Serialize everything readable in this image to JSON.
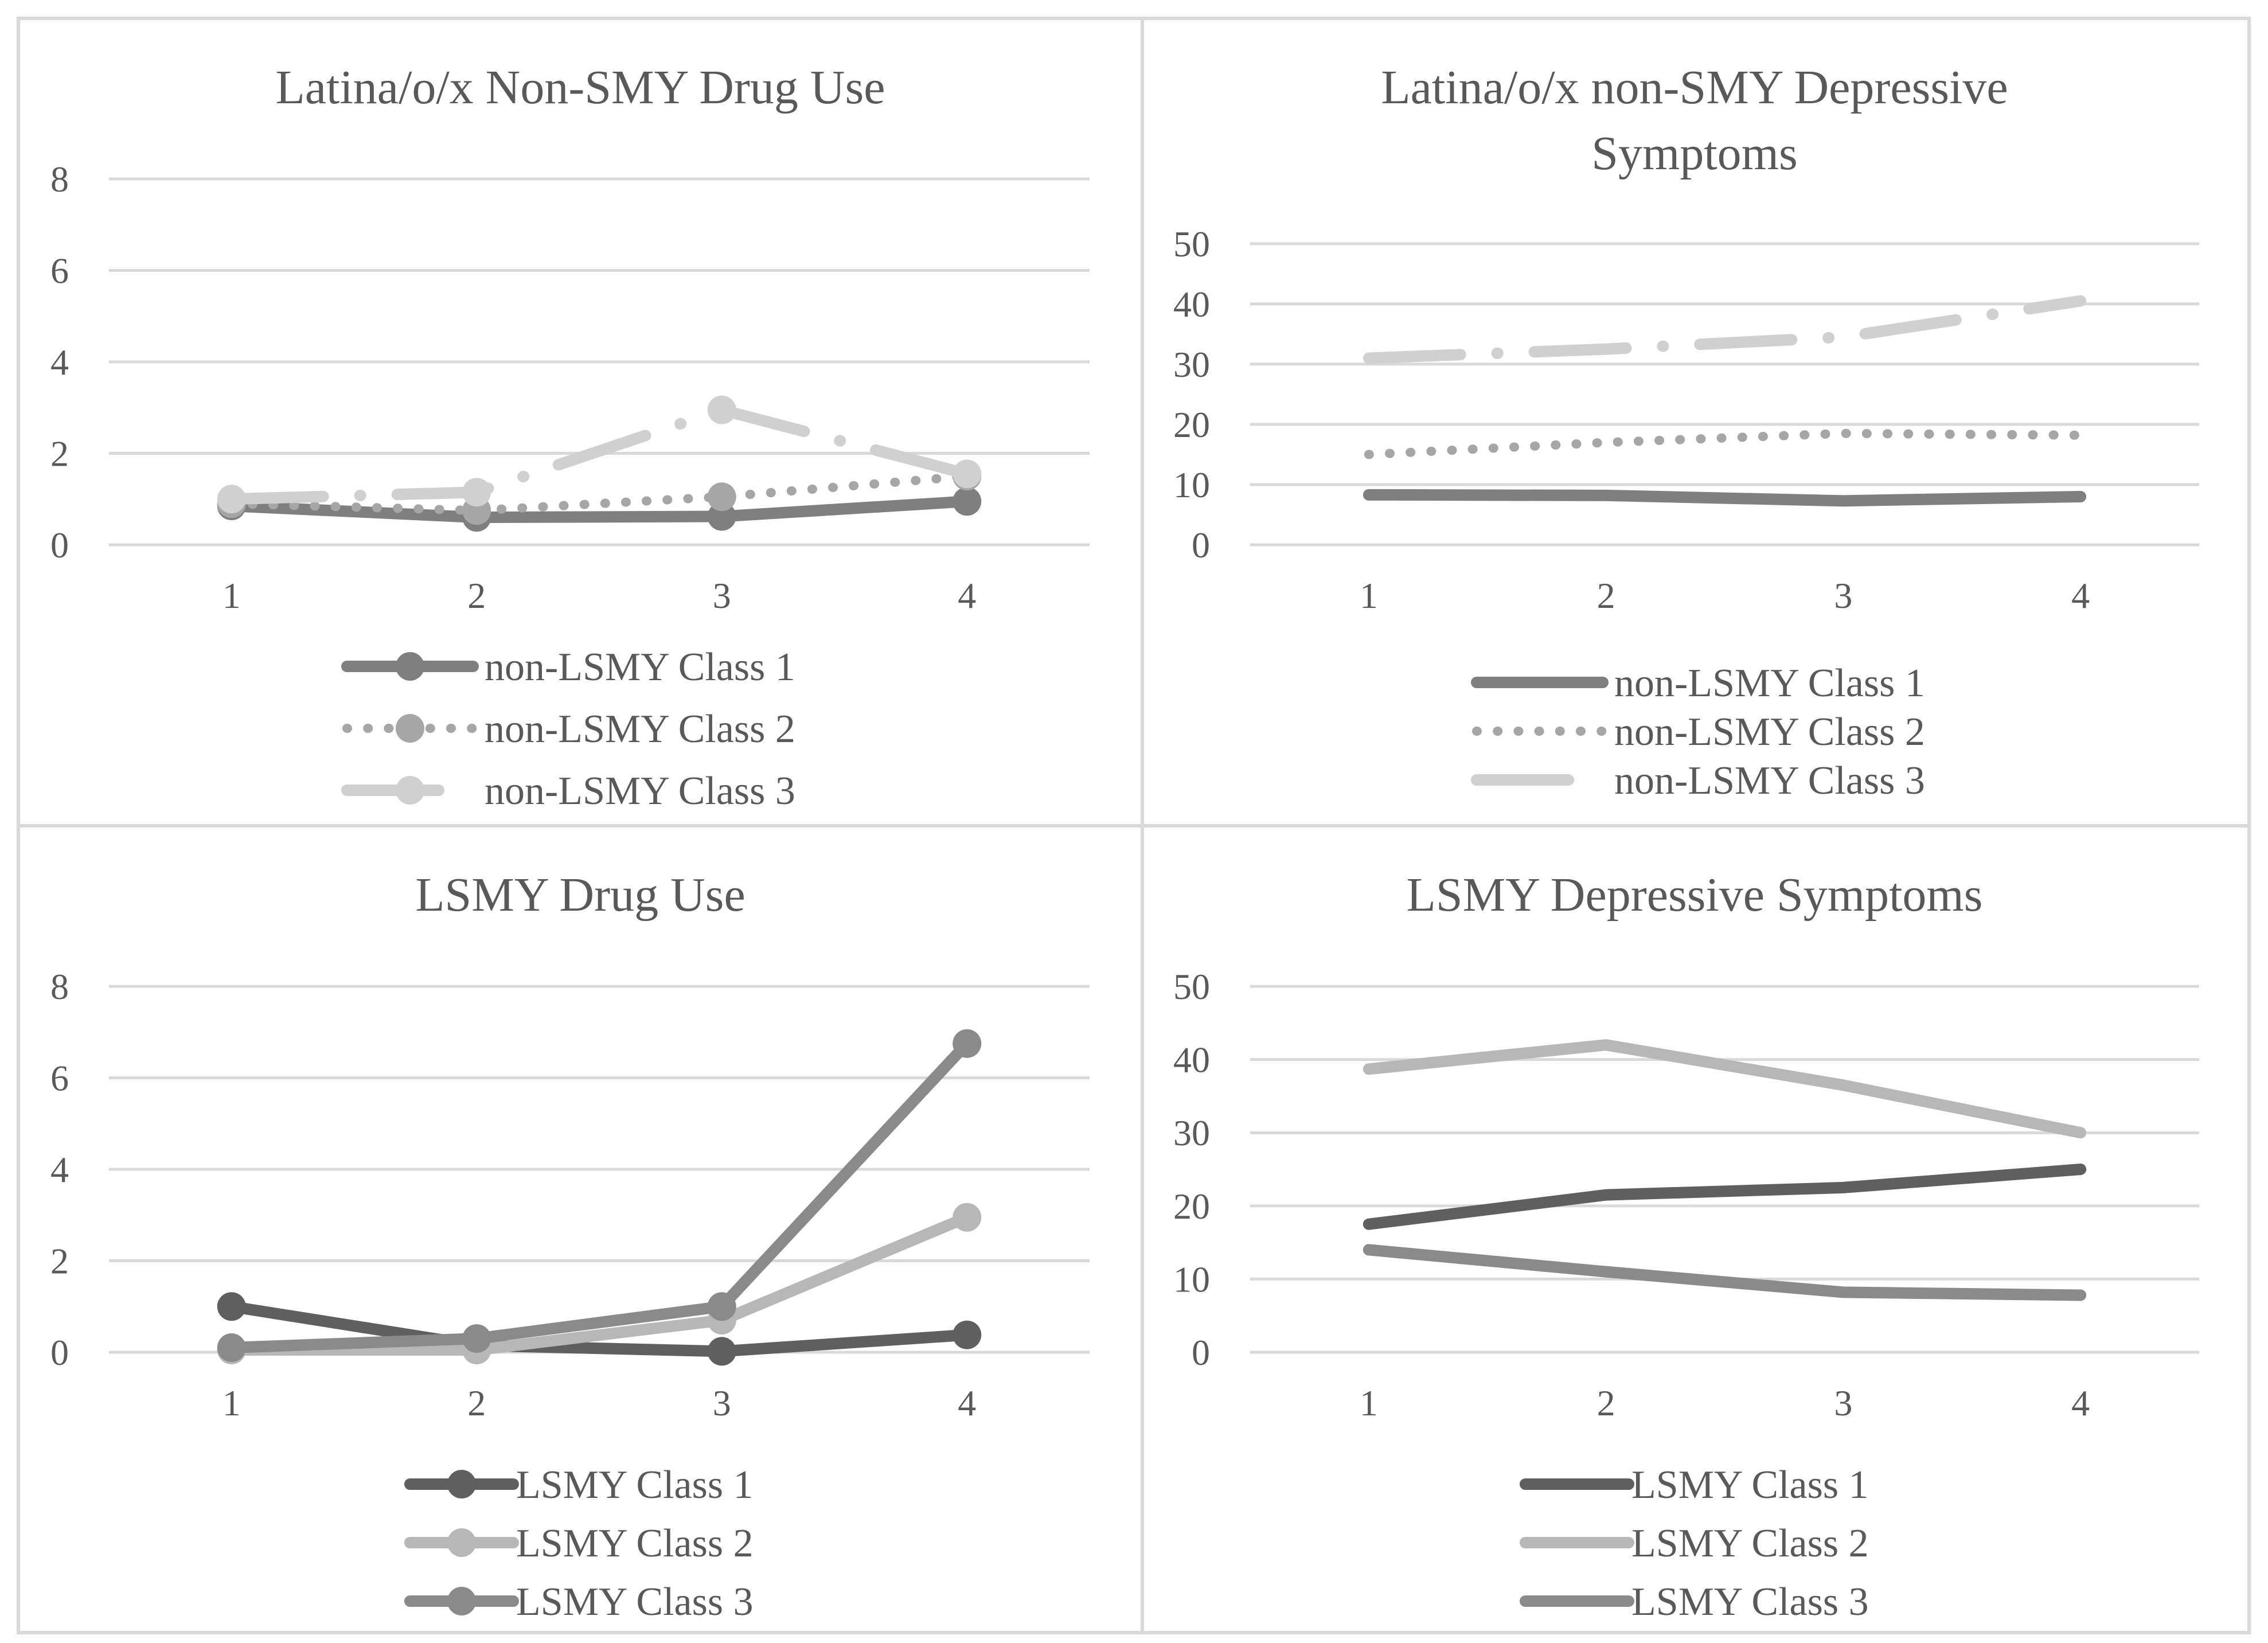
{
  "chart_data": [
    {
      "type": "line",
      "title": "Latina/o/x Non-SMY Drug Use",
      "xlabel": "",
      "ylabel": "",
      "x": [
        1,
        2,
        3,
        4
      ],
      "ylim": [
        0,
        8
      ],
      "yticks": [
        0,
        2,
        4,
        6,
        8
      ],
      "grid": true,
      "legend_position": "bottom",
      "series": [
        {
          "name": "non-LSMY Class 1",
          "values": [
            0.85,
            0.6,
            0.62,
            0.95
          ],
          "color": "#7f7f7f",
          "dash": "solid",
          "markers": true
        },
        {
          "name": "non-LSMY Class 2",
          "values": [
            0.9,
            0.75,
            1.05,
            1.5
          ],
          "color": "#a6a6a6",
          "dash": "dotted",
          "markers": true
        },
        {
          "name": "non-LSMY Class 3",
          "values": [
            1.0,
            1.15,
            2.95,
            1.55
          ],
          "color": "#d0d0d0",
          "dash": "dashdot",
          "markers": true
        }
      ]
    },
    {
      "type": "line",
      "title": "Latina/o/x non-SMY Depressive Symptoms",
      "xlabel": "",
      "ylabel": "",
      "x": [
        1,
        2,
        3,
        4
      ],
      "ylim": [
        0,
        50
      ],
      "yticks": [
        0,
        10,
        20,
        30,
        40,
        50
      ],
      "grid": true,
      "legend_position": "bottom",
      "series": [
        {
          "name": "non-LSMY Class 1",
          "values": [
            8.3,
            8.2,
            7.3,
            8.0
          ],
          "color": "#7f7f7f",
          "dash": "solid",
          "markers": false
        },
        {
          "name": "non-LSMY Class 2",
          "values": [
            15.0,
            17.0,
            18.5,
            18.2
          ],
          "color": "#a6a6a6",
          "dash": "dotted",
          "markers": false
        },
        {
          "name": "non-LSMY Class 3",
          "values": [
            31.0,
            32.5,
            34.5,
            40.5
          ],
          "color": "#d0d0d0",
          "dash": "dashdot",
          "markers": false
        }
      ]
    },
    {
      "type": "line",
      "title": "LSMY Drug Use",
      "xlabel": "",
      "ylabel": "",
      "x": [
        1,
        2,
        3,
        4
      ],
      "ylim": [
        0,
        8
      ],
      "yticks": [
        0,
        2,
        4,
        6,
        8
      ],
      "grid": true,
      "legend_position": "bottom",
      "series": [
        {
          "name": "LSMY Class 1",
          "values": [
            1.0,
            0.15,
            0.02,
            0.38
          ],
          "color": "#5f5f5f",
          "dash": "solid",
          "markers": true
        },
        {
          "name": "LSMY Class 2",
          "values": [
            0.05,
            0.05,
            0.7,
            2.95
          ],
          "color": "#b7b7b7",
          "dash": "solid",
          "markers": true
        },
        {
          "name": "LSMY Class 3",
          "values": [
            0.1,
            0.3,
            1.0,
            6.75
          ],
          "color": "#8a8a8a",
          "dash": "solid",
          "markers": true
        }
      ]
    },
    {
      "type": "line",
      "title": "LSMY Depressive Symptoms",
      "xlabel": "",
      "ylabel": "",
      "x": [
        1,
        2,
        3,
        4
      ],
      "ylim": [
        0,
        50
      ],
      "yticks": [
        0,
        10,
        20,
        30,
        40,
        50
      ],
      "grid": true,
      "legend_position": "bottom",
      "series": [
        {
          "name": "LSMY Class 1",
          "values": [
            17.5,
            21.5,
            22.5,
            25.0
          ],
          "color": "#5f5f5f",
          "dash": "solid",
          "markers": false
        },
        {
          "name": "LSMY Class 2",
          "values": [
            38.7,
            42.0,
            36.5,
            30.0
          ],
          "color": "#b7b7b7",
          "dash": "solid",
          "markers": false
        },
        {
          "name": "LSMY Class 3",
          "values": [
            14.0,
            11.0,
            8.2,
            7.8
          ],
          "color": "#8a8a8a",
          "dash": "solid",
          "markers": false
        }
      ]
    }
  ]
}
